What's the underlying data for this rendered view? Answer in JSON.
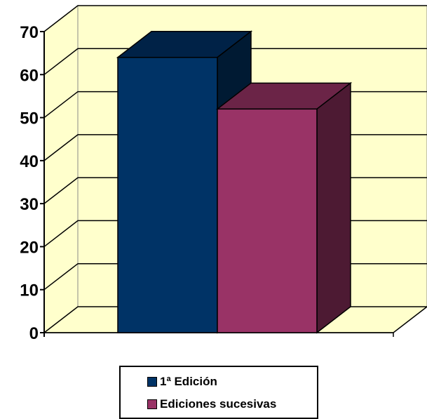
{
  "chart_data": {
    "type": "bar",
    "three_d": true,
    "categories": [
      ""
    ],
    "series": [
      {
        "name": "1ª Edición",
        "values": [
          64
        ],
        "color": "#003366",
        "side_color": "#001A33",
        "top_color": "#002247"
      },
      {
        "name": "Ediciones sucesivas",
        "values": [
          52
        ],
        "color": "#993366",
        "side_color": "#4D1A33",
        "top_color": "#6B2447"
      }
    ],
    "ylim": [
      0,
      70
    ],
    "yticks": [
      "0",
      "10",
      "20",
      "30",
      "40",
      "50",
      "60",
      "70"
    ],
    "grid": true,
    "wall_color": "#FFFFCC",
    "legend": {
      "placement": "bottom"
    },
    "title": "",
    "xlabel": "",
    "ylabel": ""
  }
}
